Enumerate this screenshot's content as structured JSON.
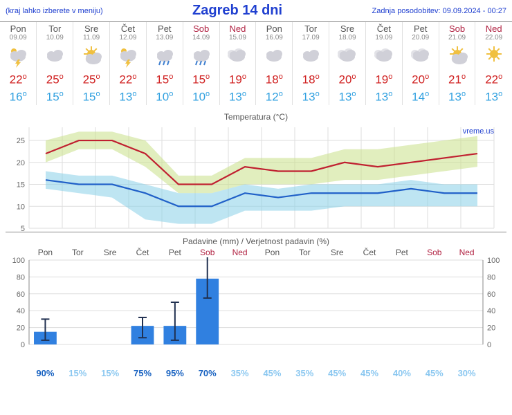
{
  "header": {
    "left_note": "(kraj lahko izberete v meniju)",
    "title": "Zagreb 14 dni",
    "update_label": "Zadnja posodobitev: 09.09.2024 - 00:27"
  },
  "days": [
    {
      "short": "Pon",
      "date": "09.09",
      "weekend": false,
      "icon": "thunder",
      "hi": 22,
      "lo": 16,
      "prob": 90,
      "precip": 15,
      "err_lo": 5,
      "err_hi": 30
    },
    {
      "short": "Tor",
      "date": "10.09",
      "weekend": false,
      "icon": "cloud",
      "hi": 25,
      "lo": 15,
      "prob": 15,
      "precip": 0,
      "err_lo": 0,
      "err_hi": 0
    },
    {
      "short": "Sre",
      "date": "11.09",
      "weekend": false,
      "icon": "partly",
      "hi": 25,
      "lo": 15,
      "prob": 15,
      "precip": 0,
      "err_lo": 0,
      "err_hi": 0
    },
    {
      "short": "Čet",
      "date": "12.09",
      "weekend": false,
      "icon": "thunder",
      "hi": 22,
      "lo": 13,
      "prob": 75,
      "precip": 22,
      "err_lo": 8,
      "err_hi": 32
    },
    {
      "short": "Pet",
      "date": "13.09",
      "weekend": false,
      "icon": "rain",
      "hi": 15,
      "lo": 10,
      "prob": 95,
      "precip": 22,
      "err_lo": 5,
      "err_hi": 50
    },
    {
      "short": "Sob",
      "date": "14.09",
      "weekend": true,
      "icon": "rain",
      "hi": 15,
      "lo": 10,
      "prob": 70,
      "precip": 78,
      "err_lo": 55,
      "err_hi": 105
    },
    {
      "short": "Ned",
      "date": "15.09",
      "weekend": true,
      "icon": "cloudy",
      "hi": 19,
      "lo": 13,
      "prob": 35,
      "precip": 0,
      "err_lo": 0,
      "err_hi": 0
    },
    {
      "short": "Pon",
      "date": "16.09",
      "weekend": false,
      "icon": "cloud",
      "hi": 18,
      "lo": 12,
      "prob": 45,
      "precip": 0,
      "err_lo": 0,
      "err_hi": 0
    },
    {
      "short": "Tor",
      "date": "17.09",
      "weekend": false,
      "icon": "cloud",
      "hi": 18,
      "lo": 13,
      "prob": 35,
      "precip": 0,
      "err_lo": 0,
      "err_hi": 0
    },
    {
      "short": "Sre",
      "date": "18.09",
      "weekend": false,
      "icon": "cloudy",
      "hi": 20,
      "lo": 13,
      "prob": 45,
      "precip": 0,
      "err_lo": 0,
      "err_hi": 0
    },
    {
      "short": "Čet",
      "date": "19.09",
      "weekend": false,
      "icon": "cloudy",
      "hi": 19,
      "lo": 13,
      "prob": 45,
      "precip": 0,
      "err_lo": 0,
      "err_hi": 0
    },
    {
      "short": "Pet",
      "date": "20.09",
      "weekend": false,
      "icon": "cloudy",
      "hi": 20,
      "lo": 14,
      "prob": 40,
      "precip": 0,
      "err_lo": 0,
      "err_hi": 0
    },
    {
      "short": "Sob",
      "date": "21.09",
      "weekend": true,
      "icon": "partly",
      "hi": 21,
      "lo": 13,
      "prob": 45,
      "precip": 0,
      "err_lo": 0,
      "err_hi": 0
    },
    {
      "short": "Ned",
      "date": "22.09",
      "weekend": true,
      "icon": "sun",
      "hi": 22,
      "lo": 13,
      "prob": 30,
      "precip": 0,
      "err_lo": 0,
      "err_hi": 0
    }
  ],
  "temp_chart": {
    "title": "Temperatura (°C)",
    "watermark": "vreme.us",
    "ylim": [
      5,
      28
    ],
    "yticks": [
      5,
      10,
      15,
      20,
      25
    ],
    "hi_line_color": "#c02030",
    "hi_band_color": "#c8e088",
    "lo_line_color": "#2060c8",
    "lo_band_color": "#88d0e8",
    "line_width": 2.2,
    "hi_band": [
      [
        20,
        25
      ],
      [
        23,
        27
      ],
      [
        23,
        27
      ],
      [
        19,
        25
      ],
      [
        13,
        17
      ],
      [
        13,
        17
      ],
      [
        15,
        21
      ],
      [
        15,
        21
      ],
      [
        15,
        21
      ],
      [
        16,
        23
      ],
      [
        16,
        23
      ],
      [
        17,
        24
      ],
      [
        18,
        25
      ],
      [
        19,
        26
      ]
    ],
    "lo_band": [
      [
        14,
        18
      ],
      [
        13,
        17
      ],
      [
        12,
        17
      ],
      [
        7,
        15
      ],
      [
        6,
        13
      ],
      [
        6,
        13
      ],
      [
        9,
        15
      ],
      [
        9,
        14
      ],
      [
        9,
        15
      ],
      [
        10,
        15
      ],
      [
        10,
        15
      ],
      [
        10,
        16
      ],
      [
        10,
        15
      ],
      [
        10,
        15
      ]
    ]
  },
  "precip_chart": {
    "title": "Padavine (mm) / Verjetnost padavin (%)",
    "ylim": [
      0,
      100
    ],
    "yticks": [
      0,
      20,
      40,
      60,
      80,
      100
    ],
    "bar_color": "#3080e0",
    "err_color": "#203050",
    "grid_color": "#dddddd",
    "prob_threshold_hi": 50
  }
}
